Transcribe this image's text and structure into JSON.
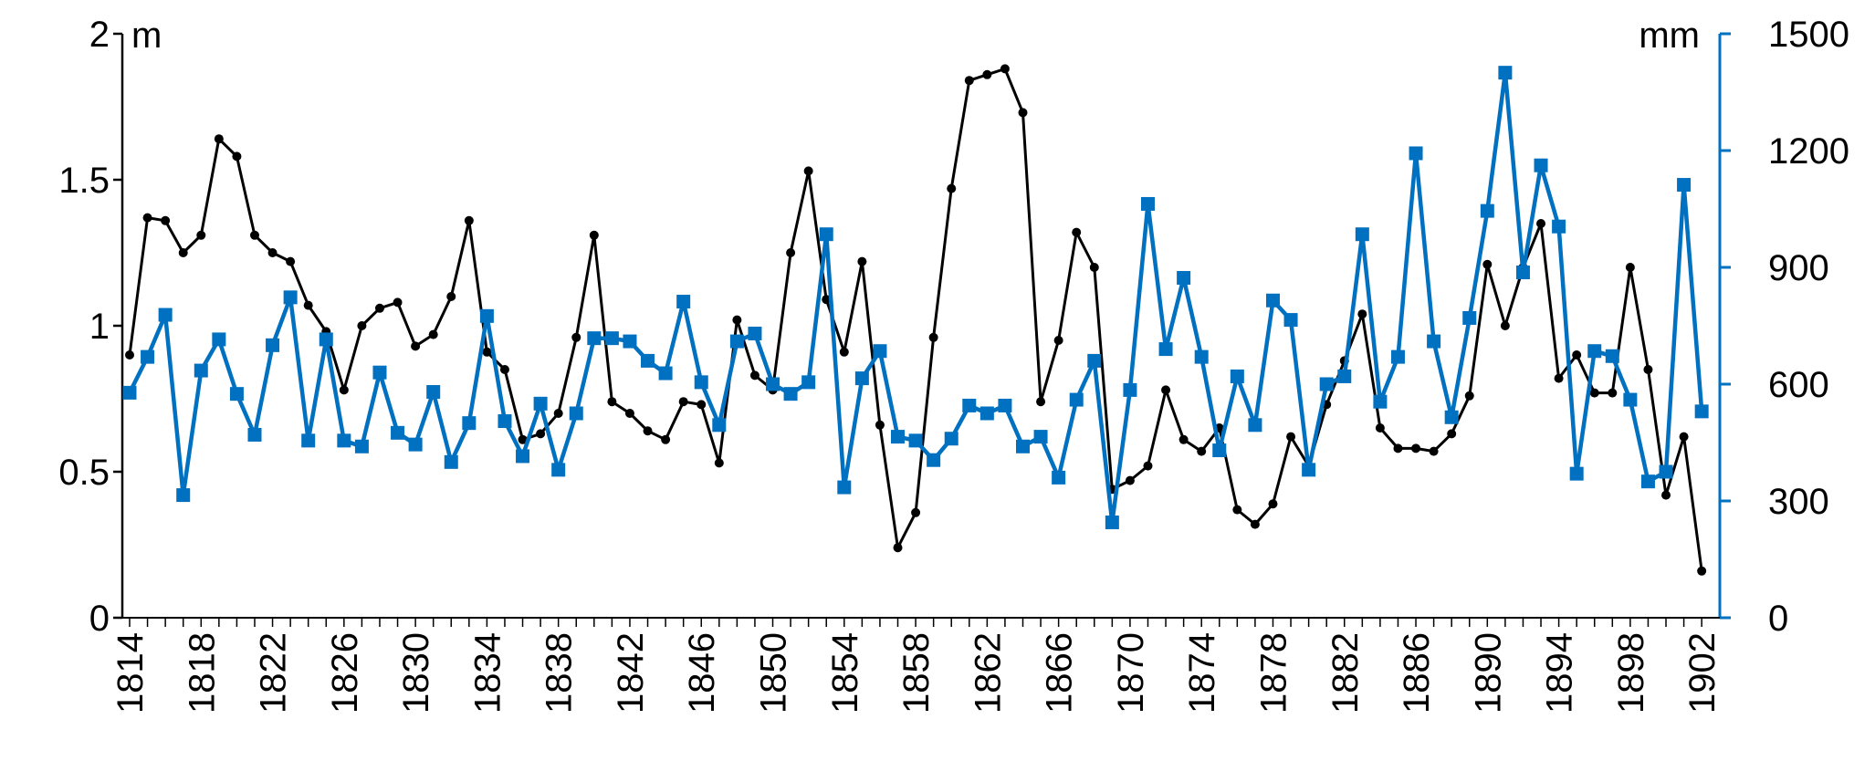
{
  "chart_data": {
    "type": "line",
    "left_axis": {
      "unit": "m",
      "ylim": [
        0,
        2
      ],
      "ticks": [
        "0",
        "0.5",
        "1",
        "1.5",
        "2"
      ],
      "color": "#000000"
    },
    "right_axis": {
      "unit": "mm",
      "ylim": [
        0,
        1500
      ],
      "ticks": [
        "0",
        "300",
        "600",
        "900",
        "1200",
        "1500"
      ],
      "color": "#0070C0"
    },
    "x_ticks": [
      "1814",
      "1818",
      "1822",
      "1826",
      "1830",
      "1834",
      "1838",
      "1842",
      "1846",
      "1850",
      "1854",
      "1858",
      "1862",
      "1866",
      "1870",
      "1874",
      "1878",
      "1882",
      "1886",
      "1890",
      "1894",
      "1898",
      "1902"
    ],
    "x": [
      1814,
      1815,
      1816,
      1817,
      1818,
      1819,
      1820,
      1821,
      1822,
      1823,
      1824,
      1825,
      1826,
      1827,
      1828,
      1829,
      1830,
      1831,
      1832,
      1833,
      1834,
      1835,
      1836,
      1837,
      1838,
      1839,
      1840,
      1841,
      1842,
      1843,
      1844,
      1845,
      1846,
      1847,
      1848,
      1849,
      1850,
      1851,
      1852,
      1853,
      1854,
      1855,
      1856,
      1857,
      1858,
      1859,
      1860,
      1861,
      1862,
      1863,
      1864,
      1865,
      1866,
      1867,
      1868,
      1869,
      1870,
      1871,
      1872,
      1873,
      1874,
      1875,
      1876,
      1877,
      1878,
      1879,
      1880,
      1881,
      1882,
      1883,
      1884,
      1885,
      1886,
      1887,
      1888,
      1889,
      1890,
      1891,
      1892,
      1893,
      1894,
      1895,
      1896,
      1897,
      1898,
      1899,
      1900,
      1901,
      1902
    ],
    "series": [
      {
        "axis": "left",
        "color": "#000000",
        "marker": "circle",
        "values": [
          0.9,
          1.37,
          1.36,
          1.25,
          1.31,
          1.64,
          1.58,
          1.31,
          1.25,
          1.22,
          1.07,
          0.98,
          0.78,
          1.0,
          1.06,
          1.08,
          0.93,
          0.97,
          1.1,
          1.36,
          0.91,
          0.85,
          0.61,
          0.63,
          0.7,
          0.96,
          1.31,
          0.74,
          0.7,
          0.64,
          0.61,
          0.74,
          0.73,
          0.53,
          1.02,
          0.83,
          0.78,
          1.25,
          1.53,
          1.09,
          0.91,
          1.22,
          0.66,
          0.24,
          0.36,
          0.96,
          1.47,
          1.84,
          1.86,
          1.88,
          1.73,
          0.74,
          0.95,
          1.32,
          1.2,
          0.44,
          0.47,
          0.52,
          0.78,
          0.61,
          0.57,
          0.65,
          0.37,
          0.32,
          0.39,
          0.62,
          0.52,
          0.73,
          0.88,
          1.04,
          0.65,
          0.58,
          0.58,
          0.57,
          0.63,
          0.76,
          1.21,
          1.0,
          1.2,
          1.35,
          0.82,
          0.9,
          0.77,
          0.77,
          1.2,
          0.85,
          0.42,
          0.62,
          0.16
        ]
      },
      {
        "axis": "right",
        "color": "#0070C0",
        "marker": "square",
        "values": [
          578,
          670,
          778,
          315,
          635,
          715,
          575,
          470,
          700,
          823,
          455,
          715,
          455,
          440,
          630,
          475,
          445,
          580,
          400,
          500,
          775,
          505,
          415,
          550,
          380,
          525,
          718,
          718,
          710,
          660,
          628,
          812,
          605,
          495,
          710,
          730,
          600,
          575,
          605,
          985,
          335,
          615,
          685,
          465,
          455,
          405,
          460,
          545,
          525,
          545,
          440,
          465,
          360,
          560,
          660,
          245,
          585,
          1063,
          690,
          873,
          670,
          430,
          620,
          495,
          815,
          765,
          380,
          600,
          620,
          985,
          555,
          670,
          1193,
          710,
          515,
          770,
          1045,
          1400,
          887,
          1162,
          1005,
          370,
          685,
          672,
          560,
          350,
          375,
          1112,
          530
        ]
      }
    ]
  }
}
